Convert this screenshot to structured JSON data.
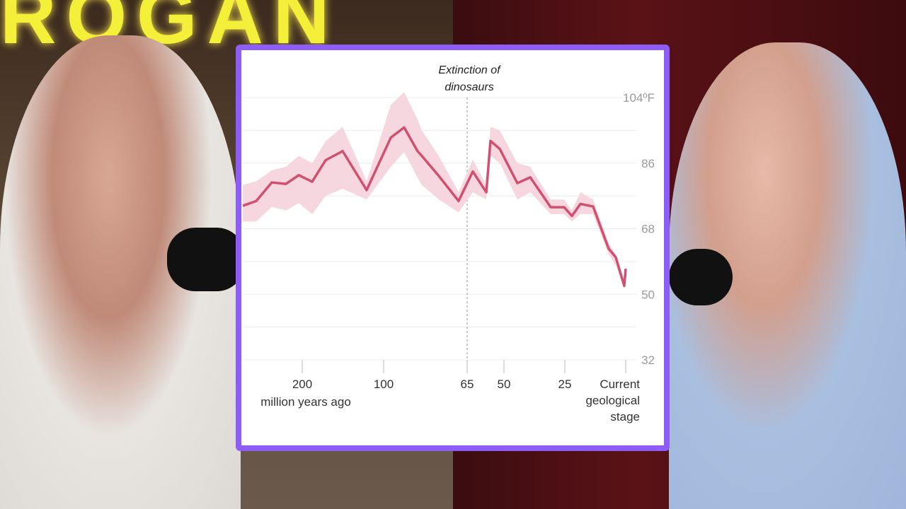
{
  "scene": {
    "sign_text": "ROGAN"
  },
  "colors": {
    "panel_border": "#8e5cf7",
    "line": "#d2506f",
    "band": "#f6d6df",
    "grid": "#ececec"
  },
  "chart_data": {
    "type": "line",
    "title": "",
    "xlabel": "million years ago",
    "ylabel": "",
    "x_scale": "piecewise (non-linear, compressed toward the past)",
    "x_ticks": [
      {
        "value": 200,
        "label": "200"
      },
      {
        "value": 100,
        "label": "100"
      },
      {
        "value": 65,
        "label": "65"
      },
      {
        "value": 50,
        "label": "50"
      },
      {
        "value": 25,
        "label": "25"
      },
      {
        "value": 0,
        "label": "Current geological stage"
      }
    ],
    "x_tick_label_lines": {
      "current": [
        "Current",
        "geological",
        "stage"
      ]
    },
    "y_ticks": [
      {
        "value": 104,
        "label": "104ºF"
      },
      {
        "value": 86,
        "label": "86"
      },
      {
        "value": 68,
        "label": "68"
      },
      {
        "value": 50,
        "label": "50"
      },
      {
        "value": 32,
        "label": "32"
      }
    ],
    "ylim": [
      32,
      104
    ],
    "y_gridlines": [
      104,
      95,
      86,
      77,
      68,
      59,
      50,
      41,
      32
    ],
    "grid": true,
    "annotation": {
      "x": 65,
      "lines": [
        "Extinction of",
        "dinosaurs"
      ]
    },
    "series": [
      {
        "x": [
          273,
          256.5,
          237.4,
          220,
          204.3,
          187.8,
          171.3,
          150.4,
          120.9,
          97,
          91.4,
          85.8,
          84,
          76.9,
          68.6,
          62.7,
          57.2,
          55.5,
          51.7,
          44.5,
          39.2,
          30.8,
          25.3,
          22.1,
          18.6,
          13.4,
          7,
          4.1,
          0.6,
          0
        ],
        "values": [
          74.3,
          75.6,
          80.7,
          80.3,
          82.7,
          80.9,
          86.8,
          89.3,
          78.6,
          93,
          95.8,
          89.3,
          88,
          82.5,
          75.6,
          83.7,
          78,
          92.1,
          89.9,
          80.5,
          82.1,
          73.9,
          73.9,
          71.5,
          74.8,
          74.1,
          62.5,
          60.2,
          52.3,
          57
        ],
        "upper": [
          80,
          81,
          84,
          85,
          88,
          86,
          92,
          96,
          81,
          102,
          105.5,
          98,
          95,
          88,
          78,
          87,
          80,
          96,
          95,
          86,
          85,
          76,
          76,
          73,
          78,
          76,
          64,
          61,
          53,
          58
        ],
        "lower": [
          70,
          70,
          74,
          73,
          75,
          72,
          77,
          79,
          76,
          85,
          89,
          82,
          80,
          76,
          72.5,
          78,
          76,
          88,
          86,
          76,
          78,
          72,
          72,
          70,
          72,
          72,
          61,
          58,
          51.5,
          55
        ]
      }
    ]
  }
}
